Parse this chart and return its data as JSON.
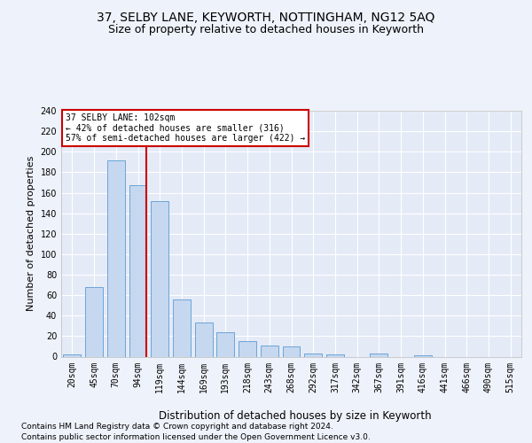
{
  "title1": "37, SELBY LANE, KEYWORTH, NOTTINGHAM, NG12 5AQ",
  "title2": "Size of property relative to detached houses in Keyworth",
  "xlabel": "Distribution of detached houses by size in Keyworth",
  "ylabel": "Number of detached properties",
  "categories": [
    "20sqm",
    "45sqm",
    "70sqm",
    "94sqm",
    "119sqm",
    "144sqm",
    "169sqm",
    "193sqm",
    "218sqm",
    "243sqm",
    "268sqm",
    "292sqm",
    "317sqm",
    "342sqm",
    "367sqm",
    "391sqm",
    "416sqm",
    "441sqm",
    "466sqm",
    "490sqm",
    "515sqm"
  ],
  "values": [
    2,
    68,
    192,
    167,
    152,
    56,
    33,
    24,
    15,
    11,
    10,
    3,
    2,
    0,
    3,
    0,
    1,
    0,
    0,
    0,
    0
  ],
  "bar_color": "#c5d8f0",
  "bar_edge_color": "#5b9bd5",
  "redline_index": 3,
  "annotation_line1": "37 SELBY LANE: 102sqm",
  "annotation_line2": "← 42% of detached houses are smaller (316)",
  "annotation_line3": "57% of semi-detached houses are larger (422) →",
  "annotation_box_color": "#ffffff",
  "annotation_box_edge": "#cc0000",
  "redline_color": "#cc0000",
  "footer1": "Contains HM Land Registry data © Crown copyright and database right 2024.",
  "footer2": "Contains public sector information licensed under the Open Government Licence v3.0.",
  "bg_color": "#eef2fa",
  "plot_bg_color": "#e4eaf6",
  "grid_color": "#ffffff",
  "yticks": [
    0,
    20,
    40,
    60,
    80,
    100,
    120,
    140,
    160,
    180,
    200,
    220,
    240
  ],
  "ylim": [
    0,
    240
  ],
  "title1_fontsize": 10,
  "title2_fontsize": 9,
  "xlabel_fontsize": 8.5,
  "ylabel_fontsize": 8,
  "tick_fontsize": 7,
  "annotation_fontsize": 7,
  "footer_fontsize": 6.5
}
